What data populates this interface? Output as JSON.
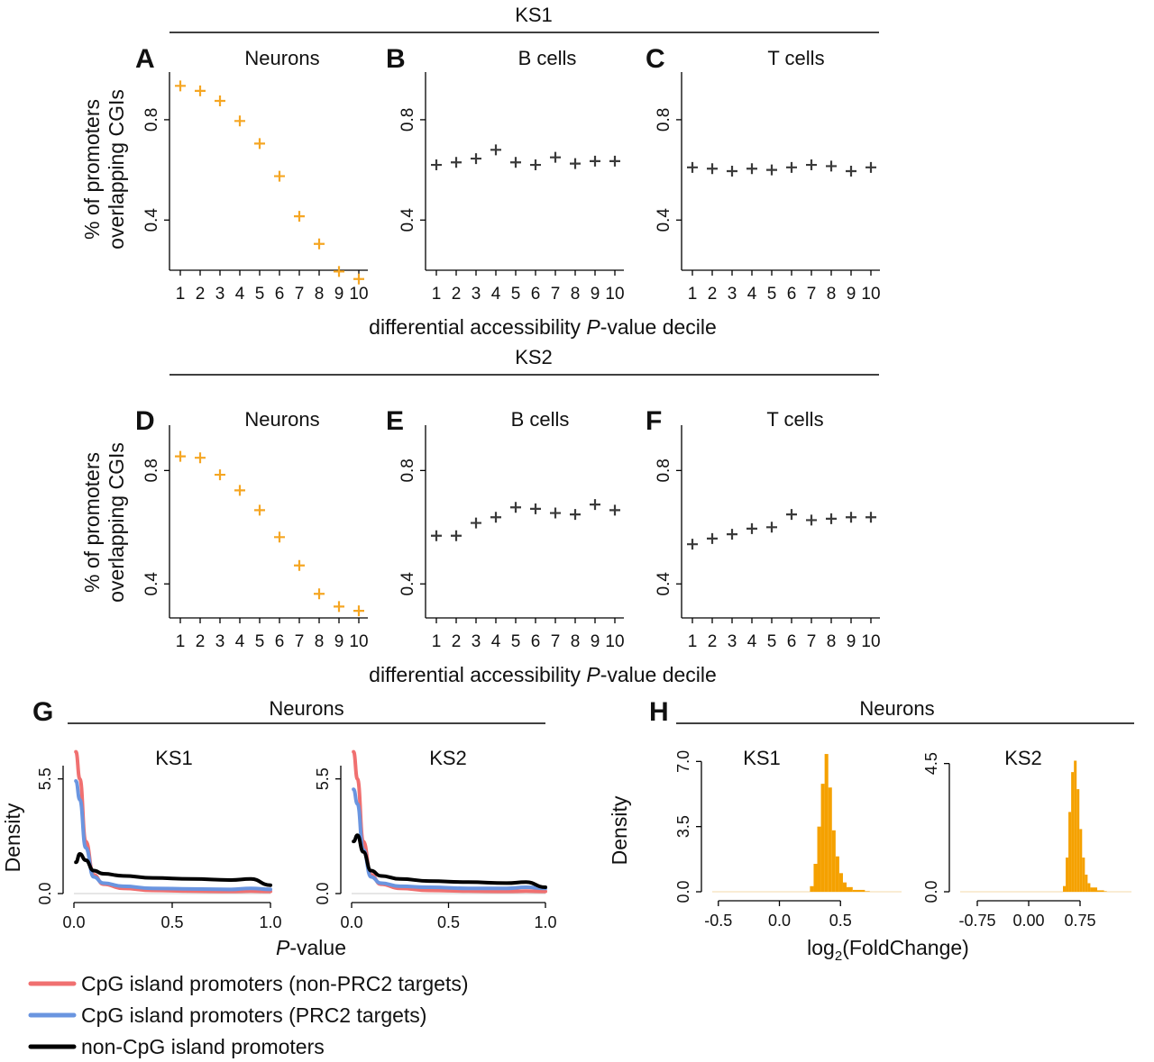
{
  "colors": {
    "orange": "#F5A623",
    "gray": "#3a3a3a",
    "red": "#F07070",
    "blue": "#6A95E0",
    "black": "#000000",
    "hist": "#F5A100"
  },
  "sections": {
    "ks1": "KS1",
    "ks2": "KS2",
    "g_title": "Neurons",
    "h_title": "Neurons"
  },
  "common": {
    "ylabel_line1": "% of promoters",
    "ylabel_line2": "overlapping CGIs",
    "xlabel_prefix": "differential accessibility ",
    "xlabel_p": "P",
    "xlabel_suffix": "-value decile"
  },
  "chart_data": [
    {
      "panel": "A",
      "type": "scatter",
      "title": "Neurons",
      "group": "KS1",
      "color": "orange",
      "ylim": [
        0.2,
        0.99
      ],
      "yticks": [
        0.4,
        0.8
      ],
      "x": [
        1,
        2,
        3,
        4,
        5,
        6,
        7,
        8,
        9,
        10
      ],
      "values": [
        0.935,
        0.915,
        0.875,
        0.795,
        0.705,
        0.575,
        0.415,
        0.305,
        0.195,
        0.165
      ]
    },
    {
      "panel": "B",
      "type": "scatter",
      "title": "B cells",
      "group": "KS1",
      "color": "gray",
      "ylim": [
        0.2,
        0.99
      ],
      "yticks": [
        0.4,
        0.8
      ],
      "x": [
        1,
        2,
        3,
        4,
        5,
        6,
        7,
        8,
        9,
        10
      ],
      "values": [
        0.62,
        0.63,
        0.645,
        0.68,
        0.63,
        0.62,
        0.65,
        0.625,
        0.635,
        0.635
      ]
    },
    {
      "panel": "C",
      "type": "scatter",
      "title": "T cells",
      "group": "KS1",
      "color": "gray",
      "ylim": [
        0.2,
        0.99
      ],
      "yticks": [
        0.4,
        0.8
      ],
      "x": [
        1,
        2,
        3,
        4,
        5,
        6,
        7,
        8,
        9,
        10
      ],
      "values": [
        0.61,
        0.605,
        0.595,
        0.605,
        0.6,
        0.61,
        0.62,
        0.615,
        0.595,
        0.61
      ]
    },
    {
      "panel": "D",
      "type": "scatter",
      "title": "Neurons",
      "group": "KS2",
      "color": "orange",
      "ylim": [
        0.28,
        0.96
      ],
      "yticks": [
        0.4,
        0.8
      ],
      "x": [
        1,
        2,
        3,
        4,
        5,
        6,
        7,
        8,
        9,
        10
      ],
      "values": [
        0.85,
        0.845,
        0.785,
        0.73,
        0.66,
        0.565,
        0.465,
        0.365,
        0.32,
        0.305
      ]
    },
    {
      "panel": "E",
      "type": "scatter",
      "title": "B cells",
      "group": "KS2",
      "color": "gray",
      "ylim": [
        0.28,
        0.96
      ],
      "yticks": [
        0.4,
        0.8
      ],
      "x": [
        1,
        2,
        3,
        4,
        5,
        6,
        7,
        8,
        9,
        10
      ],
      "values": [
        0.57,
        0.57,
        0.615,
        0.635,
        0.67,
        0.665,
        0.65,
        0.645,
        0.68,
        0.66
      ]
    },
    {
      "panel": "F",
      "type": "scatter",
      "title": "T cells",
      "group": "KS2",
      "color": "gray",
      "ylim": [
        0.28,
        0.96
      ],
      "yticks": [
        0.4,
        0.8
      ],
      "x": [
        1,
        2,
        3,
        4,
        5,
        6,
        7,
        8,
        9,
        10
      ],
      "values": [
        0.54,
        0.56,
        0.575,
        0.595,
        0.6,
        0.645,
        0.625,
        0.63,
        0.635,
        0.635
      ]
    },
    {
      "panel": "G",
      "type": "line",
      "subpanels": [
        "KS1",
        "KS2"
      ],
      "xlabel_p": "P",
      "xlabel_suffix": "-value",
      "ylabel": "Density",
      "yticks": [
        0.0,
        5.5
      ],
      "ytick_labels": [
        "0.0",
        "5.5"
      ],
      "xticks": [
        0.0,
        0.5,
        1.0
      ],
      "xtick_labels": [
        "0.0",
        "0.5",
        "1.0"
      ],
      "xlim": [
        0,
        1
      ],
      "ylim": [
        0,
        7
      ],
      "x": [
        0.01,
        0.03,
        0.06,
        0.1,
        0.15,
        0.25,
        0.4,
        0.6,
        0.8,
        0.9,
        1.0
      ],
      "series": [
        {
          "name": "CpG island promoters (non-PRC2 targets)",
          "color": "red",
          "ks1": [
            6.8,
            5.5,
            2.5,
            0.9,
            0.45,
            0.25,
            0.15,
            0.12,
            0.1,
            0.12,
            0.1
          ],
          "ks2": [
            6.8,
            5.5,
            2.5,
            0.9,
            0.45,
            0.25,
            0.15,
            0.12,
            0.1,
            0.12,
            0.1
          ]
        },
        {
          "name": "CpG island promoters (PRC2 targets)",
          "color": "blue",
          "ks1": [
            5.4,
            4.5,
            2.2,
            0.8,
            0.5,
            0.35,
            0.25,
            0.22,
            0.2,
            0.25,
            0.2
          ],
          "ks2": [
            5.0,
            4.3,
            2.1,
            0.8,
            0.5,
            0.35,
            0.3,
            0.25,
            0.25,
            0.3,
            0.25
          ]
        },
        {
          "name": "non-CpG island promoters",
          "color": "black",
          "ks1": [
            1.5,
            1.9,
            1.6,
            1.1,
            0.95,
            0.85,
            0.75,
            0.7,
            0.65,
            0.7,
            0.4
          ],
          "ks2": [
            2.5,
            2.8,
            2.0,
            1.1,
            0.85,
            0.7,
            0.6,
            0.55,
            0.5,
            0.55,
            0.3
          ]
        }
      ]
    },
    {
      "panel": "H",
      "type": "bar",
      "subpanels": [
        "KS1",
        "KS2"
      ],
      "xlabel": "log",
      "xlabel_sub": "2",
      "xlabel_suffix": "(FoldChange)",
      "ylabel": "Density",
      "ks1": {
        "xticks": [
          -0.5,
          0.0,
          0.5
        ],
        "xtick_labels": [
          "-0.5",
          "0.0",
          "0.5"
        ],
        "yticks": [
          0.0,
          3.5,
          7.0
        ],
        "ytick_labels": [
          "0.0",
          "3.5",
          "7.0"
        ],
        "xlim": [
          -0.55,
          1.0
        ],
        "ylim": [
          0,
          7.5
        ],
        "bins": [
          0.25,
          0.28,
          0.31,
          0.34,
          0.37,
          0.4,
          0.43,
          0.46,
          0.49,
          0.52,
          0.55,
          0.6,
          0.7
        ],
        "values": [
          0.3,
          1.5,
          3.5,
          5.8,
          7.4,
          5.6,
          3.3,
          1.9,
          1.0,
          0.5,
          0.25,
          0.1,
          0.03
        ]
      },
      "ks2": {
        "xticks": [
          -0.75,
          0.0,
          0.75
        ],
        "xtick_labels": [
          "-0.75",
          "0.00",
          "0.75"
        ],
        "yticks": [
          0.0,
          4.5
        ],
        "ytick_labels": [
          "0.0",
          "4.5"
        ],
        "xlim": [
          -1.0,
          1.5
        ],
        "ylim": [
          0,
          4.9
        ],
        "bins": [
          0.5,
          0.54,
          0.58,
          0.62,
          0.66,
          0.7,
          0.74,
          0.78,
          0.82,
          0.86,
          0.9,
          1.0,
          1.1
        ],
        "values": [
          0.2,
          1.2,
          2.8,
          4.2,
          4.6,
          3.6,
          2.2,
          1.2,
          0.6,
          0.3,
          0.15,
          0.05,
          0.02
        ]
      }
    }
  ],
  "legend": [
    {
      "label": "CpG island promoters (non-PRC2 targets)",
      "color": "red"
    },
    {
      "label": "CpG island promoters (PRC2 targets)",
      "color": "blue"
    },
    {
      "label": "non-CpG island promoters",
      "color": "black"
    }
  ]
}
